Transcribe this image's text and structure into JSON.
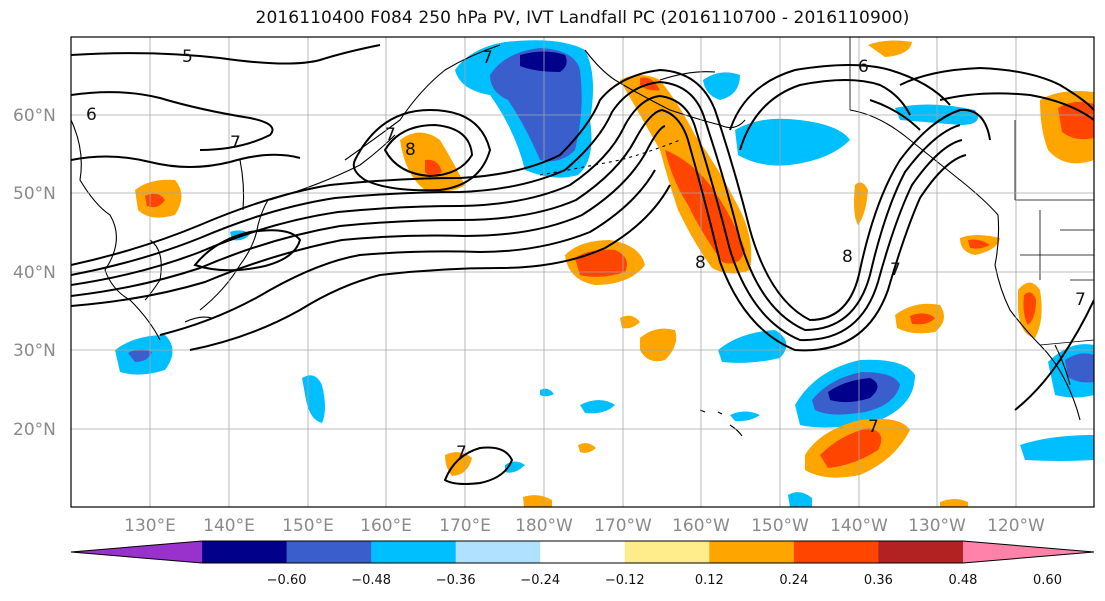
{
  "title": "2016110400 F084 250 hPa PV, IVT Landfall PC (2016110700 - 2016110900)",
  "lat_labels": [
    "60°N",
    "50°N",
    "40°N",
    "30°N",
    "20°N"
  ],
  "lon_labels": [
    "130°E",
    "140°E",
    "150°E",
    "160°E",
    "170°E",
    "180°W",
    "170°W",
    "160°W",
    "150°W",
    "140°W",
    "130°W",
    "120°W"
  ],
  "colorbar": {
    "colors": [
      "#9932cc",
      "#00008b",
      "#3a5fcd",
      "#00bfff",
      "#b0e2ff",
      "#ffffff",
      "#ffec8b",
      "#ffa500",
      "#ff4500",
      "#b22222",
      "#ff82ab"
    ],
    "tick_labels": [
      "−0.60",
      "−0.48",
      "−0.36",
      "−0.24",
      "−0.12",
      "0.12",
      "0.24",
      "0.36",
      "0.48",
      "0.60"
    ]
  },
  "contour_labels": [
    "5",
    "6",
    "7",
    "7",
    "7",
    "8",
    "8",
    "6",
    "8",
    "7",
    "7",
    "7",
    "7"
  ]
}
